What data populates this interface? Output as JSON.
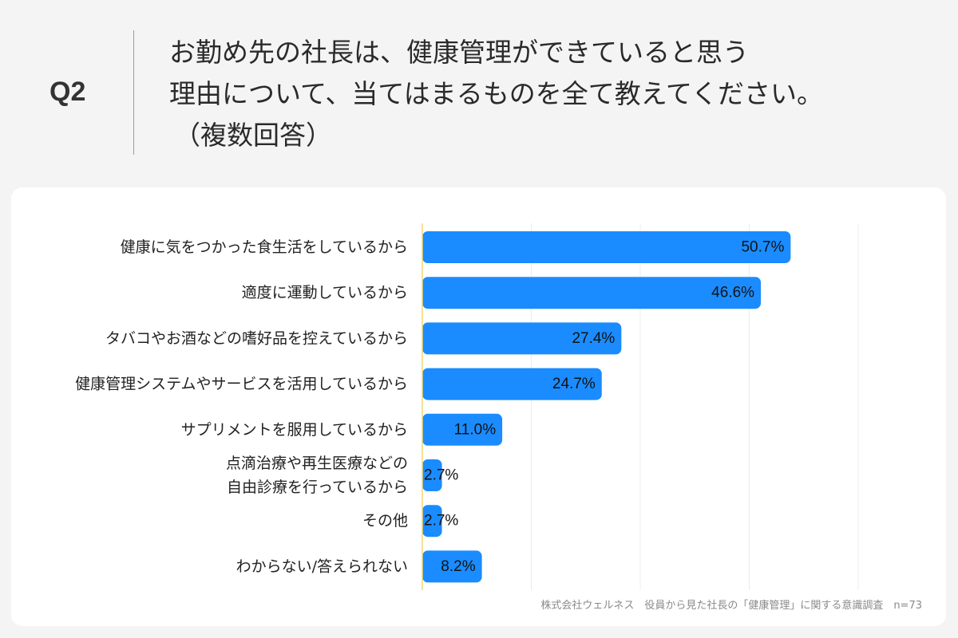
{
  "header": {
    "question_number": "Q2",
    "question_lines": [
      "お勤め先の社長は、健康管理ができていると思う",
      "理由について、当てはまるものを全て教えてください。",
      "（複数回答）"
    ]
  },
  "chart_data": {
    "type": "bar",
    "orientation": "horizontal",
    "categories": [
      [
        "健康に気をつかった食生活をしているから"
      ],
      [
        "適度に運動しているから"
      ],
      [
        "タバコやお酒などの嗜好品を控えているから"
      ],
      [
        "健康管理システムやサービスを活用しているから"
      ],
      [
        "サプリメントを服用しているから"
      ],
      [
        "点滴治療や再生医療などの",
        "自由診療を行っているから"
      ],
      [
        "その他"
      ],
      [
        "わからない/答えられない"
      ]
    ],
    "values": [
      50.7,
      46.6,
      27.4,
      24.7,
      11.0,
      2.7,
      2.7,
      8.2
    ],
    "value_labels": [
      "50.7%",
      "46.6%",
      "27.4%",
      "24.7%",
      "11.0%",
      "2.7%",
      "2.7%",
      "8.2%"
    ],
    "xlim": [
      0,
      100
    ],
    "grid": true,
    "bar_color": "#1a8cff",
    "axis_color": "#f2d675"
  },
  "footer": {
    "source": "株式会社ウェルネス　役員から見た社長の「健康管理」に関する意識調査　n=73"
  }
}
